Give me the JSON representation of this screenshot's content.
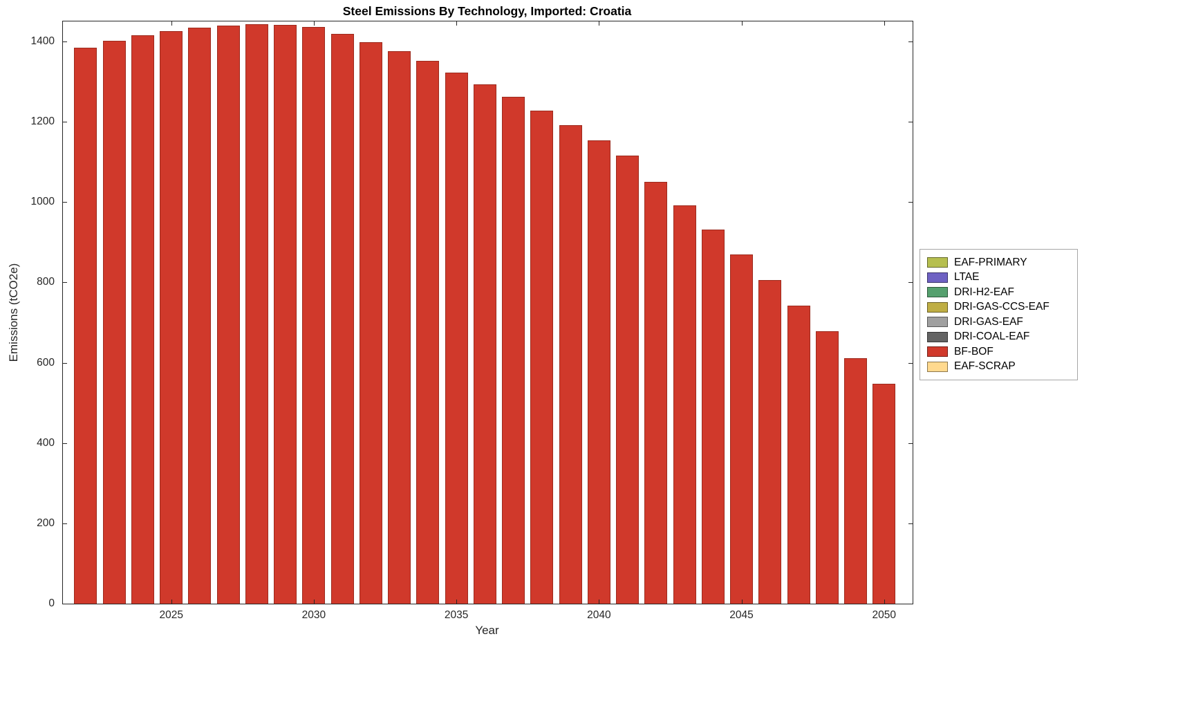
{
  "chart_data": {
    "type": "bar",
    "title": "Steel Emissions By Technology, Imported: Croatia",
    "xlabel": "Year",
    "ylabel": "Emissions (tCO2e)",
    "x": [
      2022,
      2023,
      2024,
      2025,
      2026,
      2027,
      2028,
      2029,
      2030,
      2031,
      2032,
      2033,
      2034,
      2035,
      2036,
      2037,
      2038,
      2039,
      2040,
      2041,
      2042,
      2043,
      2044,
      2045,
      2046,
      2047,
      2048,
      2049,
      2050
    ],
    "series": [
      {
        "name": "BF-BOF",
        "color": "#d0392b",
        "values": [
          1385,
          1402,
          1415,
          1426,
          1434,
          1440,
          1443,
          1441,
          1437,
          1419,
          1399,
          1376,
          1351,
          1323,
          1294,
          1262,
          1228,
          1192,
          1154,
          1116,
          1051,
          992,
          931,
          869,
          806,
          742,
          678,
          612,
          547
        ]
      }
    ],
    "legend": [
      {
        "label": "EAF-PRIMARY",
        "color": "#b6bf4f"
      },
      {
        "label": "LTAE",
        "color": "#6e61c3"
      },
      {
        "label": "DRI-H2-EAF",
        "color": "#55a06e"
      },
      {
        "label": "DRI-GAS-CCS-EAF",
        "color": "#bfae44"
      },
      {
        "label": "DRI-GAS-EAF",
        "color": "#a0a0a0"
      },
      {
        "label": "DRI-COAL-EAF",
        "color": "#636363"
      },
      {
        "label": "BF-BOF",
        "color": "#d0392b"
      },
      {
        "label": "EAF-SCRAP",
        "color": "#ffd98e"
      }
    ],
    "ylim": [
      0,
      1450
    ],
    "x_range": [
      2021.2,
      2051.0
    ],
    "bar_rel_width": 0.8,
    "yticks": [
      0,
      200,
      400,
      600,
      800,
      1000,
      1200,
      1400
    ],
    "xticks": [
      2025,
      2030,
      2035,
      2040,
      2045,
      2050
    ],
    "grid": false,
    "legend_position": "right-outside"
  }
}
